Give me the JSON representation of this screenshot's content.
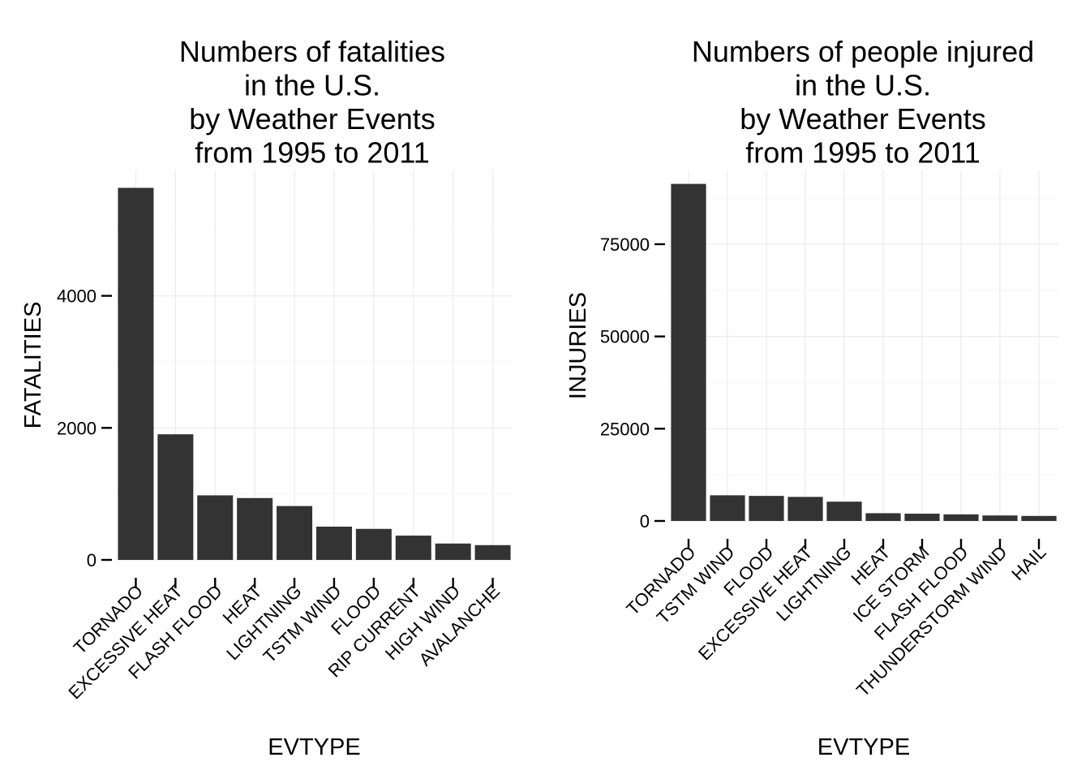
{
  "chart_data": [
    {
      "type": "bar",
      "title": [
        "Numbers of fatalities",
        "in the U.S.",
        "by Weather Events",
        "from 1995 to 2011"
      ],
      "xlabel": "EVTYPE",
      "ylabel": "FATALITIES",
      "categories": [
        "TORNADO",
        "EXCESSIVE HEAT",
        "FLASH FLOOD",
        "HEAT",
        "LIGHTNING",
        "TSTM WIND",
        "FLOOD",
        "RIP CURRENT",
        "HIGH WIND",
        "AVALANCHE"
      ],
      "values": [
        5636,
        1903,
        978,
        937,
        816,
        504,
        470,
        368,
        248,
        224
      ],
      "yticks": [
        0,
        2000,
        4000
      ],
      "ylim": [
        0,
        5900
      ],
      "grid": true,
      "bar_color": "#333333"
    },
    {
      "type": "bar",
      "title": [
        "Numbers of people injured",
        "in the U.S.",
        "by Weather Events",
        "from 1995 to 2011"
      ],
      "xlabel": "EVTYPE",
      "ylabel": "INJURIES",
      "categories": [
        "TORNADO",
        "TSTM WIND",
        "FLOOD",
        "EXCESSIVE HEAT",
        "LIGHTNING",
        "HEAT",
        "ICE STORM",
        "FLASH FLOOD",
        "THUNDERSTORM WIND",
        "HAIL"
      ],
      "values": [
        91346,
        6957,
        6789,
        6525,
        5230,
        2100,
        1975,
        1777,
        1488,
        1361
      ],
      "yticks": [
        0,
        25000,
        50000,
        75000
      ],
      "ylim": [
        0,
        95000
      ],
      "grid": true,
      "bar_color": "#333333"
    }
  ]
}
